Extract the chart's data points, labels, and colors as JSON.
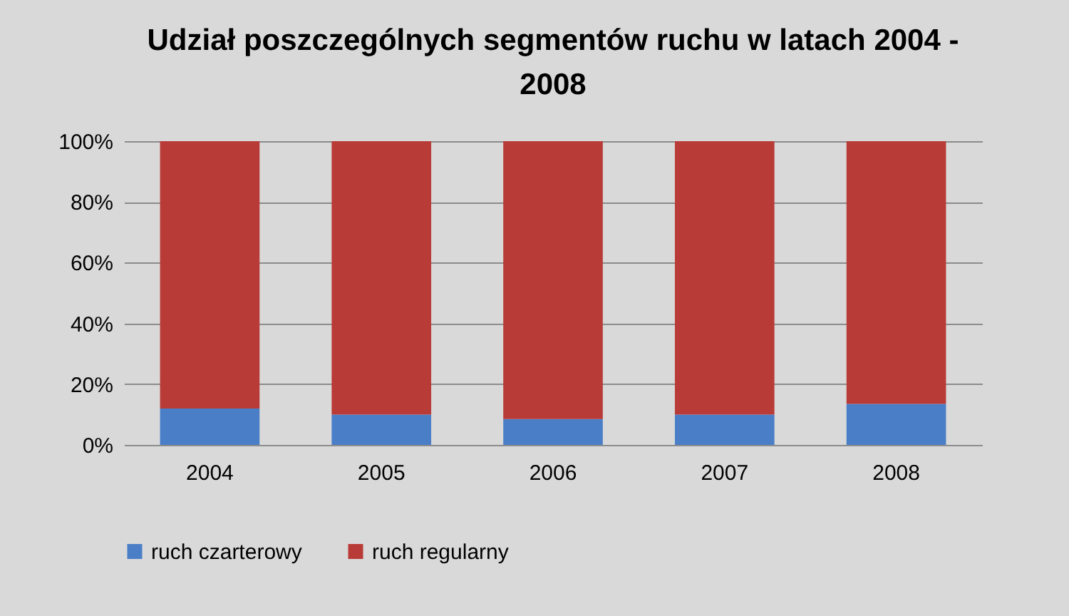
{
  "chart_data": {
    "type": "bar",
    "title": "Udział poszczególnych segmentów ruchu w latach 2004 - 2008",
    "categories": [
      "2004",
      "2005",
      "2006",
      "2007",
      "2008"
    ],
    "stacked": true,
    "series": [
      {
        "name": "ruch czarterowy",
        "color": "#4a7fc8",
        "values": [
          12,
          10,
          8.5,
          10,
          13.5
        ]
      },
      {
        "name": "ruch regularny",
        "color": "#b93b38",
        "values": [
          88,
          90,
          91.5,
          90,
          86.5
        ]
      }
    ],
    "ylim": [
      0,
      100
    ],
    "yticks": [
      {
        "value": 0,
        "label": "0%"
      },
      {
        "value": 20,
        "label": "20%"
      },
      {
        "value": 40,
        "label": "40%"
      },
      {
        "value": 60,
        "label": "60%"
      },
      {
        "value": 80,
        "label": "80%"
      },
      {
        "value": 100,
        "label": "100%"
      }
    ],
    "grid": "y",
    "legend": "bottom"
  }
}
